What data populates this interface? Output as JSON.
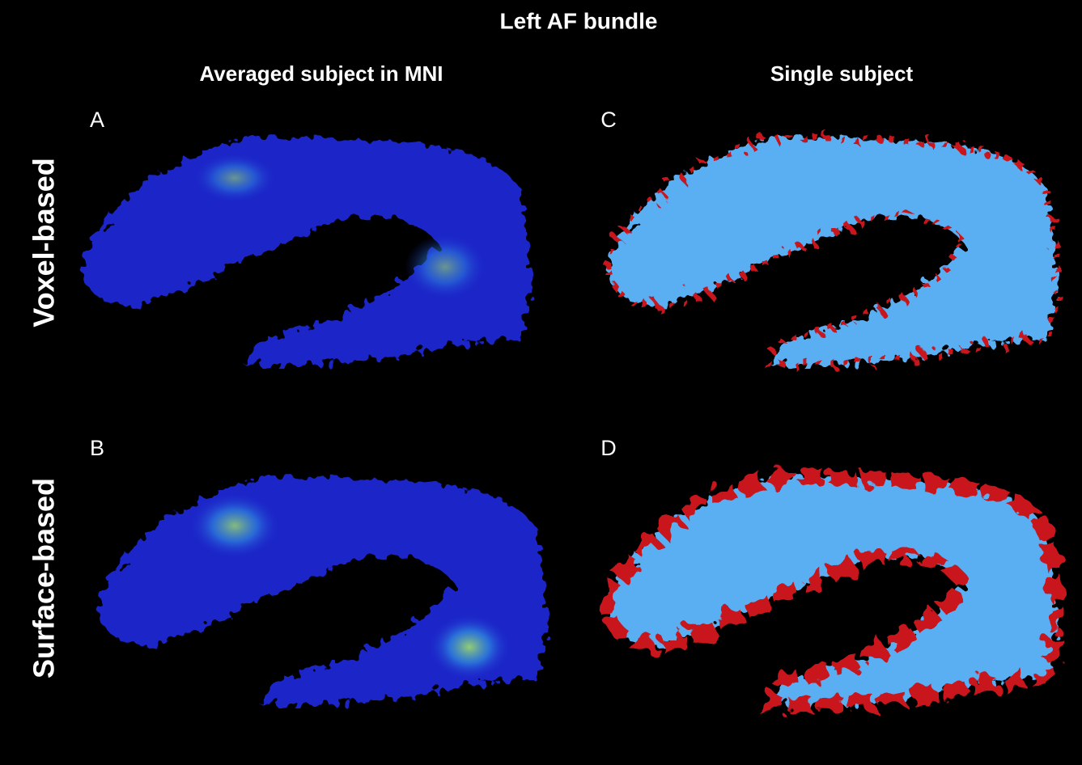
{
  "header": {
    "title": "Left AF bundle"
  },
  "columns": [
    "Averaged subject in MNI",
    "Single subject"
  ],
  "rows": [
    "Voxel-based",
    "Surface-based"
  ],
  "panels": [
    "A",
    "C",
    "B",
    "D"
  ]
}
